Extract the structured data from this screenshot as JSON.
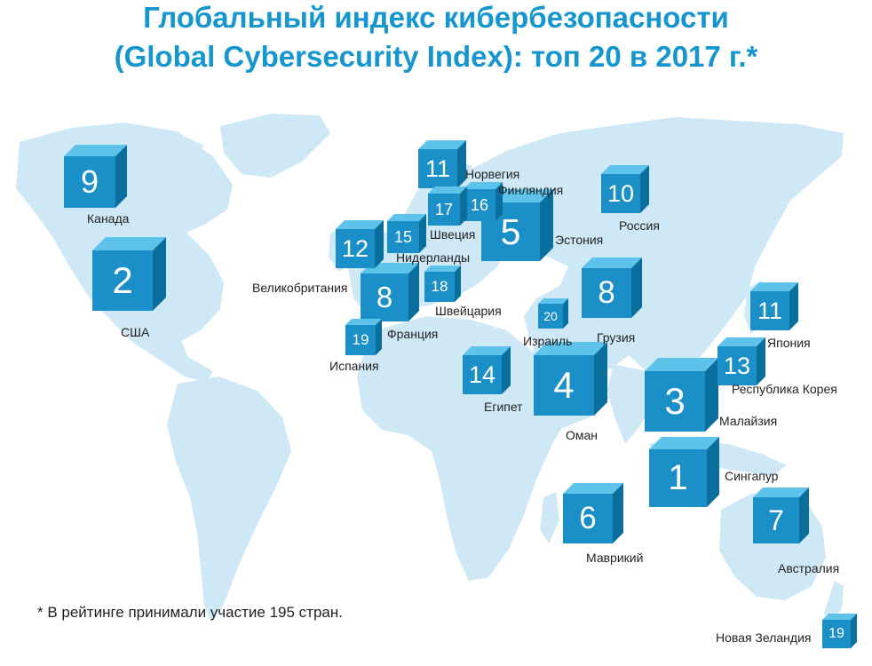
{
  "title_line1": "Глобальный индекс кибербезопасности",
  "title_line2": "(Global Cybersecurity Index): топ 20 в 2017 г.*",
  "footnote": "* В рейтинге принимали участие 195 стран.",
  "colors": {
    "land": "#cfe8f6",
    "cube_front": "#1b8fc7",
    "cube_top": "#5ec3ea",
    "cube_side": "#0b6f9e",
    "title": "#1596cf"
  },
  "countries": [
    {
      "rank": "1",
      "name": "Сингапур"
    },
    {
      "rank": "2",
      "name": "США"
    },
    {
      "rank": "3",
      "name": "Малайзия"
    },
    {
      "rank": "4",
      "name": "Оман"
    },
    {
      "rank": "5",
      "name": "Эстония"
    },
    {
      "rank": "6",
      "name": "Маврикий"
    },
    {
      "rank": "7",
      "name": "Австралия"
    },
    {
      "rank": "8",
      "name": "Грузия"
    },
    {
      "rank": "8",
      "name": "Франция"
    },
    {
      "rank": "9",
      "name": "Канада"
    },
    {
      "rank": "10",
      "name": "Россия"
    },
    {
      "rank": "11",
      "name": "Норвегия"
    },
    {
      "rank": "11",
      "name": "Япония"
    },
    {
      "rank": "12",
      "name": "Великобритания"
    },
    {
      "rank": "13",
      "name": "Республика Корея"
    },
    {
      "rank": "14",
      "name": "Египет"
    },
    {
      "rank": "15",
      "name": "Нидерланды"
    },
    {
      "rank": "16",
      "name": "Финляндия"
    },
    {
      "rank": "17",
      "name": "Швеция"
    },
    {
      "rank": "18",
      "name": "Швейцария"
    },
    {
      "rank": "19",
      "name": "Испания"
    },
    {
      "rank": "19",
      "name": "Новая Зеландия"
    },
    {
      "rank": "20",
      "name": "Израиль"
    }
  ]
}
